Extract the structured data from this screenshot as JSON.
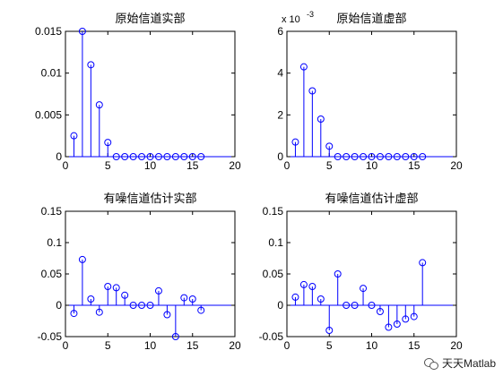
{
  "figure": {
    "watermark": "天天Matlab"
  },
  "colors": {
    "stem": "#0000ff",
    "axes": "#000000",
    "background": "#ffffff"
  },
  "chart_data": [
    {
      "type": "stem",
      "title": "原始信道实部",
      "exponent_label": "",
      "xlim": [
        0,
        20
      ],
      "ylim": [
        0,
        0.015
      ],
      "xticks": [
        0,
        5,
        10,
        15,
        20
      ],
      "yticks": [
        0,
        0.005,
        0.01,
        0.015
      ],
      "ytick_labels": [
        "0",
        "0.005",
        "0.01",
        "0.015"
      ],
      "x": [
        1,
        2,
        3,
        4,
        5,
        6,
        7,
        8,
        9,
        10,
        11,
        12,
        13,
        14,
        15,
        16
      ],
      "y": [
        0.0025,
        0.015,
        0.011,
        0.0062,
        0.0017,
        0,
        0,
        0,
        0,
        0,
        0,
        0,
        0,
        0,
        0,
        0
      ]
    },
    {
      "type": "stem",
      "title": "原始信道虚部",
      "exponent_label": "x 10",
      "exponent_power": "-3",
      "xlim": [
        0,
        20
      ],
      "ylim": [
        0,
        6
      ],
      "xticks": [
        0,
        5,
        10,
        15,
        20
      ],
      "yticks": [
        0,
        2,
        4,
        6
      ],
      "ytick_labels": [
        "0",
        "2",
        "4",
        "6"
      ],
      "x": [
        1,
        2,
        3,
        4,
        5,
        6,
        7,
        8,
        9,
        10,
        11,
        12,
        13,
        14,
        15,
        16
      ],
      "y": [
        0.7,
        4.3,
        3.15,
        1.8,
        0.5,
        0,
        0,
        0,
        0,
        0,
        0,
        0,
        0,
        0,
        0,
        0
      ]
    },
    {
      "type": "stem",
      "title": "有噪信道估计实部",
      "exponent_label": "",
      "xlim": [
        0,
        20
      ],
      "ylim": [
        -0.05,
        0.15
      ],
      "xticks": [
        0,
        5,
        10,
        15,
        20
      ],
      "yticks": [
        -0.05,
        0,
        0.05,
        0.1,
        0.15
      ],
      "ytick_labels": [
        "-0.05",
        "0",
        "0.05",
        "0.1",
        "0.15"
      ],
      "x": [
        1,
        2,
        3,
        4,
        5,
        6,
        7,
        8,
        9,
        10,
        11,
        12,
        13,
        14,
        15,
        16
      ],
      "y": [
        -0.013,
        0.073,
        0.01,
        -0.011,
        0.03,
        0.028,
        0.016,
        0,
        0,
        0,
        0.023,
        -0.015,
        -0.05,
        0.012,
        0.01,
        -0.008
      ]
    },
    {
      "type": "stem",
      "title": "有噪信道估计虚部",
      "exponent_label": "",
      "xlim": [
        0,
        20
      ],
      "ylim": [
        -0.05,
        0.15
      ],
      "xticks": [
        0,
        5,
        10,
        15,
        20
      ],
      "yticks": [
        -0.05,
        0,
        0.05,
        0.1,
        0.15
      ],
      "ytick_labels": [
        "-0.05",
        "0",
        "0.05",
        "0.1",
        "0.15"
      ],
      "x": [
        1,
        2,
        3,
        4,
        5,
        6,
        7,
        8,
        9,
        10,
        11,
        12,
        13,
        14,
        15,
        16
      ],
      "y": [
        0.013,
        0.033,
        0.03,
        0.01,
        -0.04,
        0.05,
        0,
        0,
        0.027,
        0,
        -0.01,
        -0.035,
        -0.03,
        -0.022,
        -0.018,
        0.068
      ]
    }
  ]
}
